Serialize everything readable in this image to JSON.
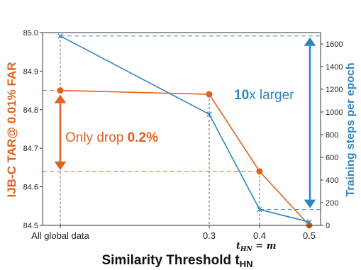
{
  "chart_data": {
    "type": "line",
    "x": [
      "All global data",
      "0.3",
      "0.4",
      "0.5"
    ],
    "x_positions": [
      0.0,
      0.3,
      0.4,
      0.5
    ],
    "xlabel": "Similarity Threshold t",
    "xlabel_sub": "HN",
    "x_annotation": "t",
    "x_annotation_sub": "HN",
    "x_annotation_rest": " = m",
    "ylabel_left": "IJB-C TAR@ 0.01% FAR",
    "ylabel_right": "Training steps per epoch",
    "ylim_left": [
      84.5,
      85.0
    ],
    "ylim_right": [
      0,
      1700
    ],
    "yticks_left": [
      "84.5",
      "84.6",
      "84.7",
      "84.8",
      "84.9",
      "85.0"
    ],
    "yticks_right": [
      "0",
      "200",
      "400",
      "600",
      "800",
      "1000",
      "1200",
      "1400",
      "1600"
    ],
    "series": [
      {
        "axis": "left",
        "color": "#e2611f",
        "marker": "circle",
        "values": [
          84.85,
          84.84,
          84.64,
          84.5
        ]
      },
      {
        "axis": "right",
        "color": "#2e86c1",
        "marker": "x",
        "values": [
          1670,
          980,
          140,
          30
        ]
      }
    ],
    "annotations": {
      "drop_text": "Only drop ",
      "drop_value": "0.2%",
      "larger_value": "10",
      "larger_text": "x larger"
    }
  }
}
